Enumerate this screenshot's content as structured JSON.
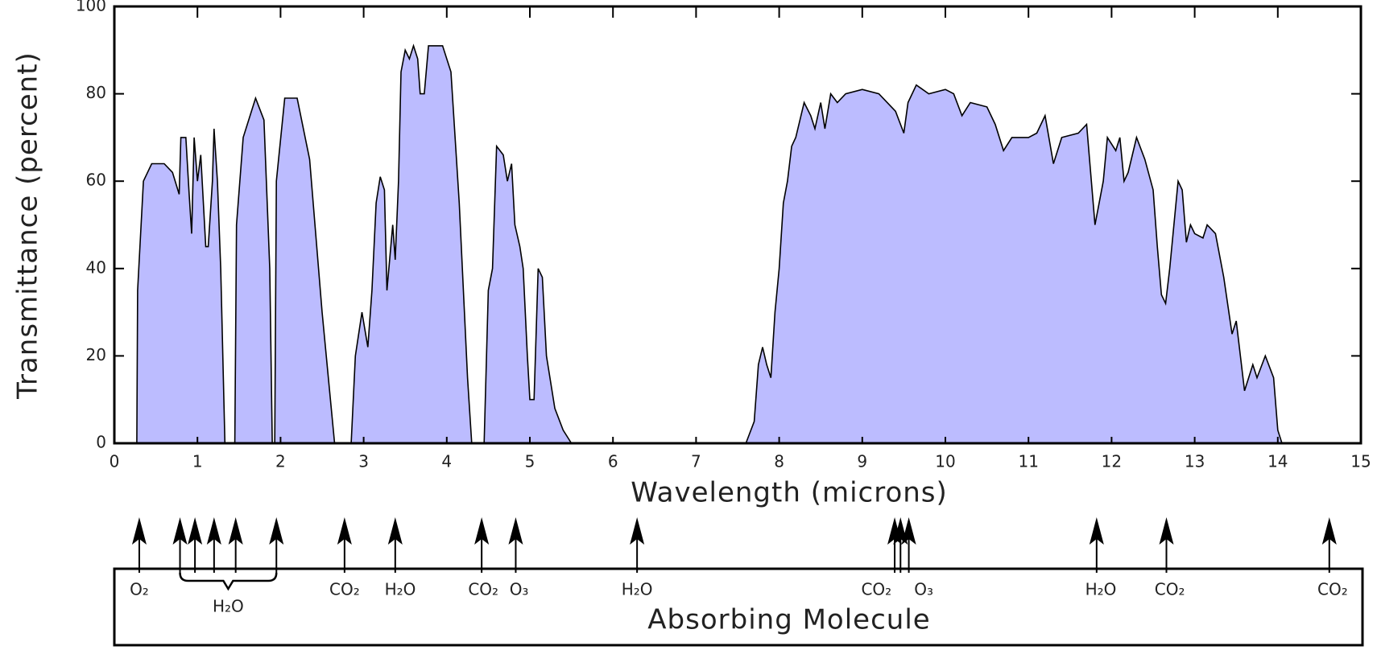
{
  "chart_data": {
    "type": "area",
    "ylabel": "Transmittance (percent)",
    "xlabel": "Wavelength (microns)",
    "absorber_title": "Absorbing Molecule",
    "color": "#bcbcff",
    "xlim": [
      0,
      15
    ],
    "xticks": [
      0,
      1,
      2,
      3,
      4,
      5,
      6,
      7,
      8,
      9,
      10,
      11,
      12,
      13,
      14,
      15
    ],
    "ylim": [
      0,
      100
    ],
    "yticks": [
      0,
      20,
      40,
      60,
      80,
      100
    ],
    "x": [
      0.27,
      0.28,
      0.35,
      0.45,
      0.6,
      0.7,
      0.78,
      0.8,
      0.86,
      0.9,
      0.93,
      0.96,
      1.0,
      1.04,
      1.1,
      1.13,
      1.18,
      1.2,
      1.24,
      1.28,
      1.33,
      1.45,
      1.47,
      1.55,
      1.7,
      1.8,
      1.87,
      1.9,
      1.93,
      1.95,
      2.05,
      2.2,
      2.35,
      2.5,
      2.65,
      2.85,
      2.9,
      2.98,
      3.05,
      3.1,
      3.15,
      3.2,
      3.25,
      3.28,
      3.35,
      3.38,
      3.42,
      3.45,
      3.5,
      3.55,
      3.6,
      3.65,
      3.68,
      3.73,
      3.78,
      3.95,
      4.05,
      4.15,
      4.25,
      4.3,
      4.45,
      4.5,
      4.55,
      4.6,
      4.68,
      4.73,
      4.78,
      4.82,
      4.88,
      4.92,
      4.97,
      5.0,
      5.05,
      5.1,
      5.15,
      5.2,
      5.3,
      5.4,
      5.5,
      7.6,
      7.7,
      7.75,
      7.8,
      7.85,
      7.9,
      7.95,
      8.0,
      8.05,
      8.1,
      8.15,
      8.2,
      8.3,
      8.38,
      8.43,
      8.5,
      8.55,
      8.62,
      8.7,
      8.8,
      9.0,
      9.2,
      9.4,
      9.5,
      9.55,
      9.65,
      9.8,
      10.0,
      10.1,
      10.2,
      10.3,
      10.5,
      10.6,
      10.7,
      10.8,
      11.0,
      11.1,
      11.2,
      11.3,
      11.4,
      11.6,
      11.7,
      11.8,
      11.9,
      11.95,
      12.05,
      12.1,
      12.15,
      12.2,
      12.3,
      12.4,
      12.5,
      12.55,
      12.6,
      12.65,
      12.7,
      12.8,
      12.85,
      12.9,
      12.95,
      13.0,
      13.1,
      13.15,
      13.25,
      13.35,
      13.45,
      13.5,
      13.6,
      13.7,
      13.75,
      13.85,
      13.95,
      14.0,
      14.05
    ],
    "values": [
      0,
      35,
      60,
      64,
      64,
      62,
      57,
      70,
      70,
      57,
      48,
      70,
      60,
      66,
      45,
      45,
      60,
      72,
      60,
      40,
      0,
      0,
      50,
      70,
      79,
      74,
      40,
      0,
      0,
      60,
      79,
      79,
      65,
      30,
      0,
      0,
      20,
      30,
      22,
      35,
      55,
      61,
      58,
      35,
      50,
      42,
      60,
      85,
      90,
      88,
      91,
      88,
      80,
      80,
      91,
      91,
      85,
      55,
      15,
      0,
      0,
      35,
      40,
      68,
      66,
      60,
      64,
      50,
      45,
      40,
      20,
      10,
      10,
      40,
      38,
      20,
      8,
      3,
      0,
      0,
      5,
      18,
      22,
      18,
      15,
      30,
      40,
      55,
      60,
      68,
      70,
      78,
      75,
      72,
      78,
      72,
      80,
      78,
      80,
      81,
      80,
      76,
      71,
      78,
      82,
      80,
      81,
      80,
      75,
      78,
      77,
      73,
      67,
      70,
      70,
      71,
      75,
      64,
      70,
      71,
      73,
      50,
      60,
      70,
      67,
      70,
      60,
      62,
      70,
      65,
      58,
      45,
      34,
      32,
      40,
      60,
      58,
      46,
      50,
      48,
      47,
      50,
      48,
      38,
      25,
      28,
      12,
      18,
      15,
      20,
      15,
      3,
      0
    ],
    "absorber_arrows": [
      0.3,
      0.79,
      0.97,
      1.2,
      1.46,
      1.95,
      2.77,
      3.38,
      4.42,
      4.83,
      6.29,
      9.39,
      9.46,
      9.56,
      11.82,
      12.66,
      14.62
    ],
    "absorber_labels": [
      {
        "label": "O₂",
        "x": 0.3
      },
      {
        "label": "CO₂",
        "x": 2.77
      },
      {
        "label": "H₂O",
        "x": 3.44
      },
      {
        "label": "CO₂",
        "x": 4.44
      },
      {
        "label": "O₃",
        "x": 4.87
      },
      {
        "label": "H₂O",
        "x": 6.29
      },
      {
        "label": "CO₂",
        "x": 9.17
      },
      {
        "label": "O₃",
        "x": 9.74
      },
      {
        "label": "H₂O",
        "x": 11.87
      },
      {
        "label": "CO₂",
        "x": 12.7
      },
      {
        "label": "CO₂",
        "x": 14.66
      }
    ],
    "bracket": {
      "label": "H₂O",
      "from": 0.79,
      "to": 1.95
    }
  }
}
